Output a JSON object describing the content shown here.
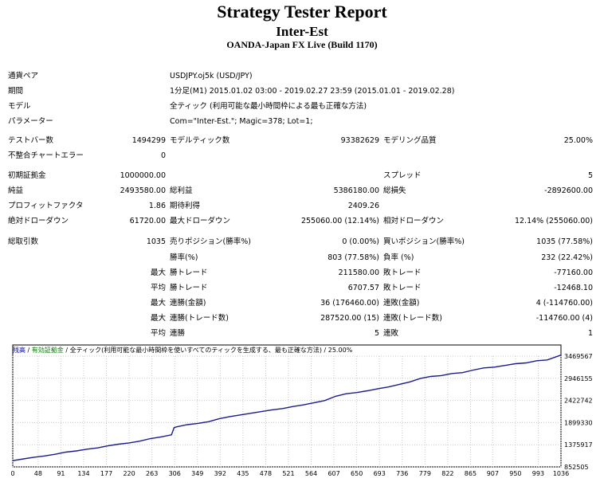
{
  "header": {
    "title": "Strategy Tester Report",
    "expert": "Inter-Est",
    "server": "OANDA-Japan FX Live (Build 1170)"
  },
  "info": {
    "pair_label": "通貨ペア",
    "pair_value": "USDJPY.oj5k (USD/JPY)",
    "period_label": "期間",
    "period_value": "1分足(M1) 2015.01.02 03:00 - 2019.02.27 23:59 (2015.01.01 - 2019.02.28)",
    "model_label": "モデル",
    "model_value": "全ティック (利用可能な最小時間枠による最も正確な方法)",
    "params_label": "パラメーター",
    "params_value": "Com=\"Inter-Est.\"; Magic=378; Lot=1;"
  },
  "stats": {
    "bars_label": "テストバー数",
    "bars_value": "1494299",
    "ticks_label": "モデルティック数",
    "ticks_value": "93382629",
    "quality_label": "モデリング品質",
    "quality_value": "25.00%",
    "mismatch_label": "不整合チャートエラー",
    "mismatch_value": "0",
    "deposit_label": "初期証拠金",
    "deposit_value": "1000000.00",
    "spread_label": "スプレッド",
    "spread_value": "5",
    "net_label": "純益",
    "net_value": "2493580.00",
    "gross_profit_label": "総利益",
    "gross_profit_value": "5386180.00",
    "gross_loss_label": "総損失",
    "gross_loss_value": "-2892600.00",
    "pf_label": "プロフィットファクタ",
    "pf_value": "1.86",
    "payoff_label": "期待利得",
    "payoff_value": "2409.26",
    "abs_dd_label": "絶対ドローダウン",
    "abs_dd_value": "61720.00",
    "max_dd_label": "最大ドローダウン",
    "max_dd_value": "255060.00 (12.14%)",
    "rel_dd_label": "相対ドローダウン",
    "rel_dd_value": "12.14% (255060.00)"
  },
  "trades": {
    "total_label": "総取引数",
    "total_value": "1035",
    "short_label": "売りポジション(勝率%)",
    "short_value": "0 (0.00%)",
    "long_label": "買いポジション(勝率%)",
    "long_value": "1035 (77.58%)",
    "win_rate_label": "勝率(%)",
    "win_rate_value": "803 (77.58%)",
    "loss_rate_label": "負率 (%)",
    "loss_rate_value": "232 (22.42%)",
    "max_label": "最大",
    "avg_label": "平均",
    "win_trade_label": "勝トレード",
    "lose_trade_label": "敗トレード",
    "max_win_value": "211580.00",
    "max_loss_value": "-77160.00",
    "avg_win_value": "6707.57",
    "avg_loss_value": "-12468.10",
    "cons_win_amt_label": "連勝(金額)",
    "cons_win_amt_value": "36 (176460.00)",
    "cons_loss_amt_label": "連敗(金額)",
    "cons_loss_amt_value": "4 (-114760.00)",
    "cons_win_tr_label": "連勝(トレード数)",
    "cons_win_tr_value": "287520.00 (15)",
    "cons_loss_tr_label": "連敗(トレード数)",
    "cons_loss_tr_value": "-114760.00 (4)",
    "streak_win_label": "連勝",
    "streak_win_value": "5",
    "streak_loss_label": "連敗",
    "streak_loss_value": "1"
  },
  "chart_data": {
    "type": "line",
    "header_balance": "残高",
    "header_sep1": " / ",
    "header_equity": "有効証拠金",
    "header_sep2": " / ",
    "header_model": "全ティック(利用可能な最小時間枠を使いすべてのティックを生成する、最も正確な方法)",
    "header_quality": " / 25.00%",
    "y_ticks": [
      "3469567",
      "2946155",
      "2422742",
      "1899330",
      "1375917",
      "852505"
    ],
    "x_ticks": [
      "0",
      "48",
      "91",
      "134",
      "177",
      "220",
      "263",
      "306",
      "349",
      "392",
      "435",
      "478",
      "521",
      "564",
      "607",
      "650",
      "693",
      "736",
      "779",
      "822",
      "865",
      "907",
      "950",
      "993",
      "1036"
    ],
    "ylim": [
      852505,
      3469567
    ],
    "xlim": [
      0,
      1036
    ],
    "x": [
      0,
      20,
      40,
      60,
      80,
      100,
      120,
      140,
      160,
      180,
      200,
      220,
      240,
      260,
      280,
      300,
      305,
      310,
      330,
      350,
      370,
      390,
      410,
      430,
      450,
      470,
      490,
      510,
      530,
      550,
      570,
      590,
      610,
      630,
      650,
      670,
      690,
      710,
      730,
      750,
      770,
      790,
      810,
      830,
      850,
      870,
      890,
      910,
      930,
      950,
      970,
      990,
      1010,
      1036
    ],
    "balance": [
      1000000,
      1040000,
      1080000,
      1110000,
      1150000,
      1200000,
      1230000,
      1270000,
      1300000,
      1350000,
      1390000,
      1420000,
      1460000,
      1520000,
      1560000,
      1610000,
      1780000,
      1800000,
      1850000,
      1880000,
      1920000,
      1990000,
      2040000,
      2080000,
      2120000,
      2160000,
      2200000,
      2230000,
      2280000,
      2320000,
      2370000,
      2420000,
      2520000,
      2580000,
      2610000,
      2650000,
      2700000,
      2740000,
      2800000,
      2860000,
      2940000,
      2990000,
      3010000,
      3060000,
      3080000,
      3140000,
      3190000,
      3210000,
      3250000,
      3290000,
      3310000,
      3360000,
      3380000,
      3493580
    ]
  }
}
